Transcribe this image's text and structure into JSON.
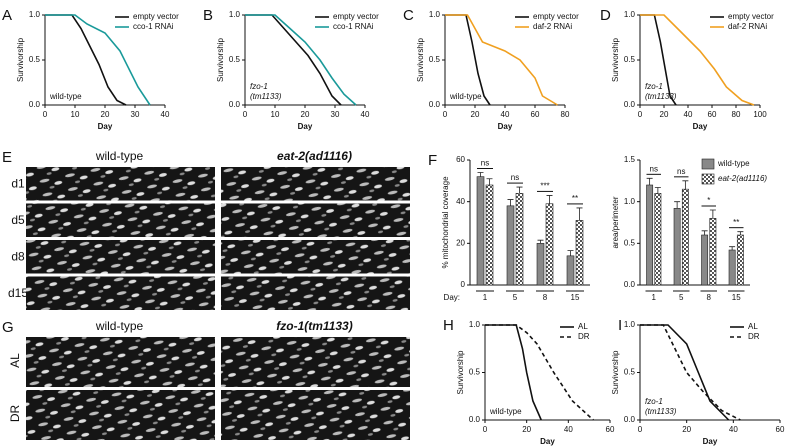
{
  "chart_data": [
    {
      "panel": "A",
      "type": "line",
      "xlabel": "Day",
      "ylabel": "Survivorship",
      "annotation": [
        "wild-type"
      ],
      "xlim": [
        0,
        40
      ],
      "xticks": [
        0,
        10,
        20,
        30,
        40
      ],
      "ylim": [
        0,
        1
      ],
      "yticks": [
        {
          "value": 0,
          "label": "0.0"
        },
        0.5,
        {
          "value": 1,
          "label": "1.0"
        }
      ],
      "series": [
        {
          "name": "empty vector",
          "color": "#111111",
          "x": [
            0,
            9,
            12,
            15,
            18,
            21,
            24,
            27
          ],
          "values": [
            1,
            1,
            0.85,
            0.65,
            0.45,
            0.2,
            0.05,
            0
          ]
        },
        {
          "name": "cco-1 RNAi",
          "color": "#1a9a9a",
          "x": [
            0,
            10,
            14,
            20,
            25,
            28,
            31,
            35
          ],
          "values": [
            1,
            1,
            0.9,
            0.8,
            0.6,
            0.4,
            0.2,
            0
          ]
        }
      ]
    },
    {
      "panel": "B",
      "type": "line",
      "xlabel": "Day",
      "ylabel": "Survivorship",
      "annotation": [
        "fzo-1",
        "(tm1133)"
      ],
      "xlim": [
        0,
        40
      ],
      "xticks": [
        0,
        10,
        20,
        30,
        40
      ],
      "ylim": [
        0,
        1
      ],
      "yticks": [
        {
          "value": 0,
          "label": "0.0"
        },
        0.5,
        {
          "value": 1,
          "label": "1.0"
        }
      ],
      "series": [
        {
          "name": "empty vector",
          "color": "#111111",
          "x": [
            0,
            9,
            13,
            17,
            21,
            25,
            29,
            32
          ],
          "values": [
            1,
            1,
            0.85,
            0.7,
            0.55,
            0.35,
            0.1,
            0
          ]
        },
        {
          "name": "cco-1 RNAi",
          "color": "#1a9a9a",
          "x": [
            0,
            10,
            15,
            20,
            25,
            29,
            33,
            37
          ],
          "values": [
            1,
            1,
            0.85,
            0.7,
            0.5,
            0.3,
            0.12,
            0
          ]
        }
      ]
    },
    {
      "panel": "C",
      "type": "line",
      "xlabel": "Day",
      "ylabel": "Survivorship",
      "annotation": [
        "wild-type"
      ],
      "xlim": [
        0,
        80
      ],
      "xticks": [
        0,
        20,
        40,
        60,
        80
      ],
      "ylim": [
        0,
        1
      ],
      "yticks": [
        {
          "value": 0,
          "label": "0.0"
        },
        0.5,
        {
          "value": 1,
          "label": "1.0"
        }
      ],
      "series": [
        {
          "name": "empty vector",
          "color": "#111111",
          "x": [
            0,
            14,
            18,
            22,
            26,
            30
          ],
          "values": [
            1,
            1,
            0.7,
            0.35,
            0.1,
            0
          ]
        },
        {
          "name": "daf-2 RNAi",
          "color": "#f0a020",
          "x": [
            0,
            15,
            25,
            40,
            50,
            60,
            65,
            75
          ],
          "values": [
            1,
            1,
            0.7,
            0.6,
            0.5,
            0.3,
            0.1,
            0
          ]
        }
      ]
    },
    {
      "panel": "D",
      "type": "line",
      "xlabel": "Day",
      "ylabel": "Survivorship",
      "annotation": [
        "fzo-1",
        "(tm1133)"
      ],
      "xlim": [
        0,
        100
      ],
      "xticks": [
        0,
        20,
        40,
        60,
        80,
        100
      ],
      "ylim": [
        0,
        1
      ],
      "yticks": [
        {
          "value": 0,
          "label": "0.0"
        },
        0.5,
        {
          "value": 1,
          "label": "1.0"
        }
      ],
      "series": [
        {
          "name": "empty vector",
          "color": "#111111",
          "x": [
            0,
            12,
            17,
            21,
            25,
            30
          ],
          "values": [
            1,
            1,
            0.7,
            0.4,
            0.1,
            0
          ]
        },
        {
          "name": "daf-2 RNAi",
          "color": "#f0a020",
          "x": [
            0,
            20,
            35,
            50,
            62,
            72,
            85,
            95
          ],
          "values": [
            1,
            1,
            0.8,
            0.6,
            0.4,
            0.2,
            0.05,
            0
          ]
        }
      ]
    },
    {
      "panel": "F",
      "type": "bar",
      "xlabel": "Day:",
      "ylabel": "% mitochondrial coverage",
      "categories": [
        "1",
        "5",
        "8",
        "15"
      ],
      "ylim": [
        0,
        60
      ],
      "yticks": [
        0,
        20,
        40,
        60
      ],
      "series": [
        {
          "name": "wild-type",
          "color": "#888888",
          "values": [
            52,
            38,
            20,
            14
          ],
          "errors": [
            2,
            3,
            1.5,
            2.5
          ]
        },
        {
          "name": "eat-2(ad1116)",
          "color": "#555555",
          "pattern": "checkerboard",
          "values": [
            48,
            44,
            39,
            31
          ],
          "errors": [
            3,
            3,
            4,
            6
          ]
        }
      ],
      "annotations": [
        "ns",
        "ns",
        "***",
        "**"
      ]
    },
    {
      "type": "bar",
      "ylabel": "area/perimeter",
      "legend": "upper right",
      "categories": [
        "1",
        "5",
        "8",
        "15"
      ],
      "ylim": [
        0,
        1.5
      ],
      "yticks": [
        {
          "value": 0,
          "label": "0.0"
        },
        0.5,
        {
          "value": 1,
          "label": "1.0"
        },
        1.5
      ],
      "series": [
        {
          "name": "wild-type",
          "color": "#888888",
          "values": [
            1.2,
            0.92,
            0.6,
            0.42
          ],
          "errors": [
            0.08,
            0.08,
            0.05,
            0.04
          ]
        },
        {
          "name": "eat-2(ad1116)",
          "color": "#555555",
          "pattern": "checkerboard",
          "values": [
            1.1,
            1.15,
            0.8,
            0.6
          ],
          "errors": [
            0.07,
            0.1,
            0.1,
            0.04
          ]
        }
      ],
      "annotations": [
        "ns",
        "ns",
        "*",
        "**"
      ]
    },
    {
      "panel": "H",
      "type": "line",
      "xlabel": "Day",
      "ylabel": "Survivorship",
      "annotation": [
        "wild-type"
      ],
      "xlim": [
        0,
        60
      ],
      "xticks": [
        0,
        20,
        40,
        60
      ],
      "ylim": [
        0,
        1
      ],
      "yticks": [
        {
          "value": 0,
          "label": "0.0"
        },
        0.5,
        {
          "value": 1,
          "label": "1.0"
        }
      ],
      "series": [
        {
          "name": "AL",
          "color": "#111111",
          "x": [
            0,
            15,
            18,
            20,
            23,
            27
          ],
          "values": [
            1,
            1,
            0.75,
            0.5,
            0.2,
            0
          ]
        },
        {
          "name": "DR",
          "color": "#111111",
          "dashed": true,
          "x": [
            0,
            15,
            20,
            25,
            33,
            42,
            52
          ],
          "values": [
            1,
            1,
            0.92,
            0.8,
            0.5,
            0.2,
            0
          ]
        }
      ]
    },
    {
      "panel": "I",
      "type": "line",
      "xlabel": "Day",
      "ylabel": "Survivorship",
      "annotation": [
        "fzo-1",
        "(tm1133)"
      ],
      "xlim": [
        0,
        60
      ],
      "xticks": [
        0,
        20,
        40,
        60
      ],
      "ylim": [
        0,
        1
      ],
      "yticks": [
        {
          "value": 0,
          "label": "0.0"
        },
        0.5,
        {
          "value": 1,
          "label": "1.0"
        }
      ],
      "series": [
        {
          "name": "AL",
          "color": "#111111",
          "x": [
            0,
            12,
            20,
            25,
            30,
            38
          ],
          "values": [
            1,
            1,
            0.8,
            0.5,
            0.2,
            0
          ]
        },
        {
          "name": "DR",
          "color": "#111111",
          "dashed": true,
          "x": [
            0,
            10,
            20,
            27,
            35,
            43
          ],
          "values": [
            1,
            1,
            0.5,
            0.3,
            0.1,
            0
          ]
        }
      ]
    }
  ],
  "images": [
    {
      "panel": "E",
      "columns": [
        "wild-type",
        "eat-2(ad1116)"
      ],
      "rows": [
        "d1",
        "d5",
        "d8",
        "d15"
      ]
    },
    {
      "panel": "G",
      "columns": [
        "wild-type",
        "fzo-1(tm1133)"
      ],
      "rows": [
        "AL",
        "DR"
      ]
    }
  ]
}
